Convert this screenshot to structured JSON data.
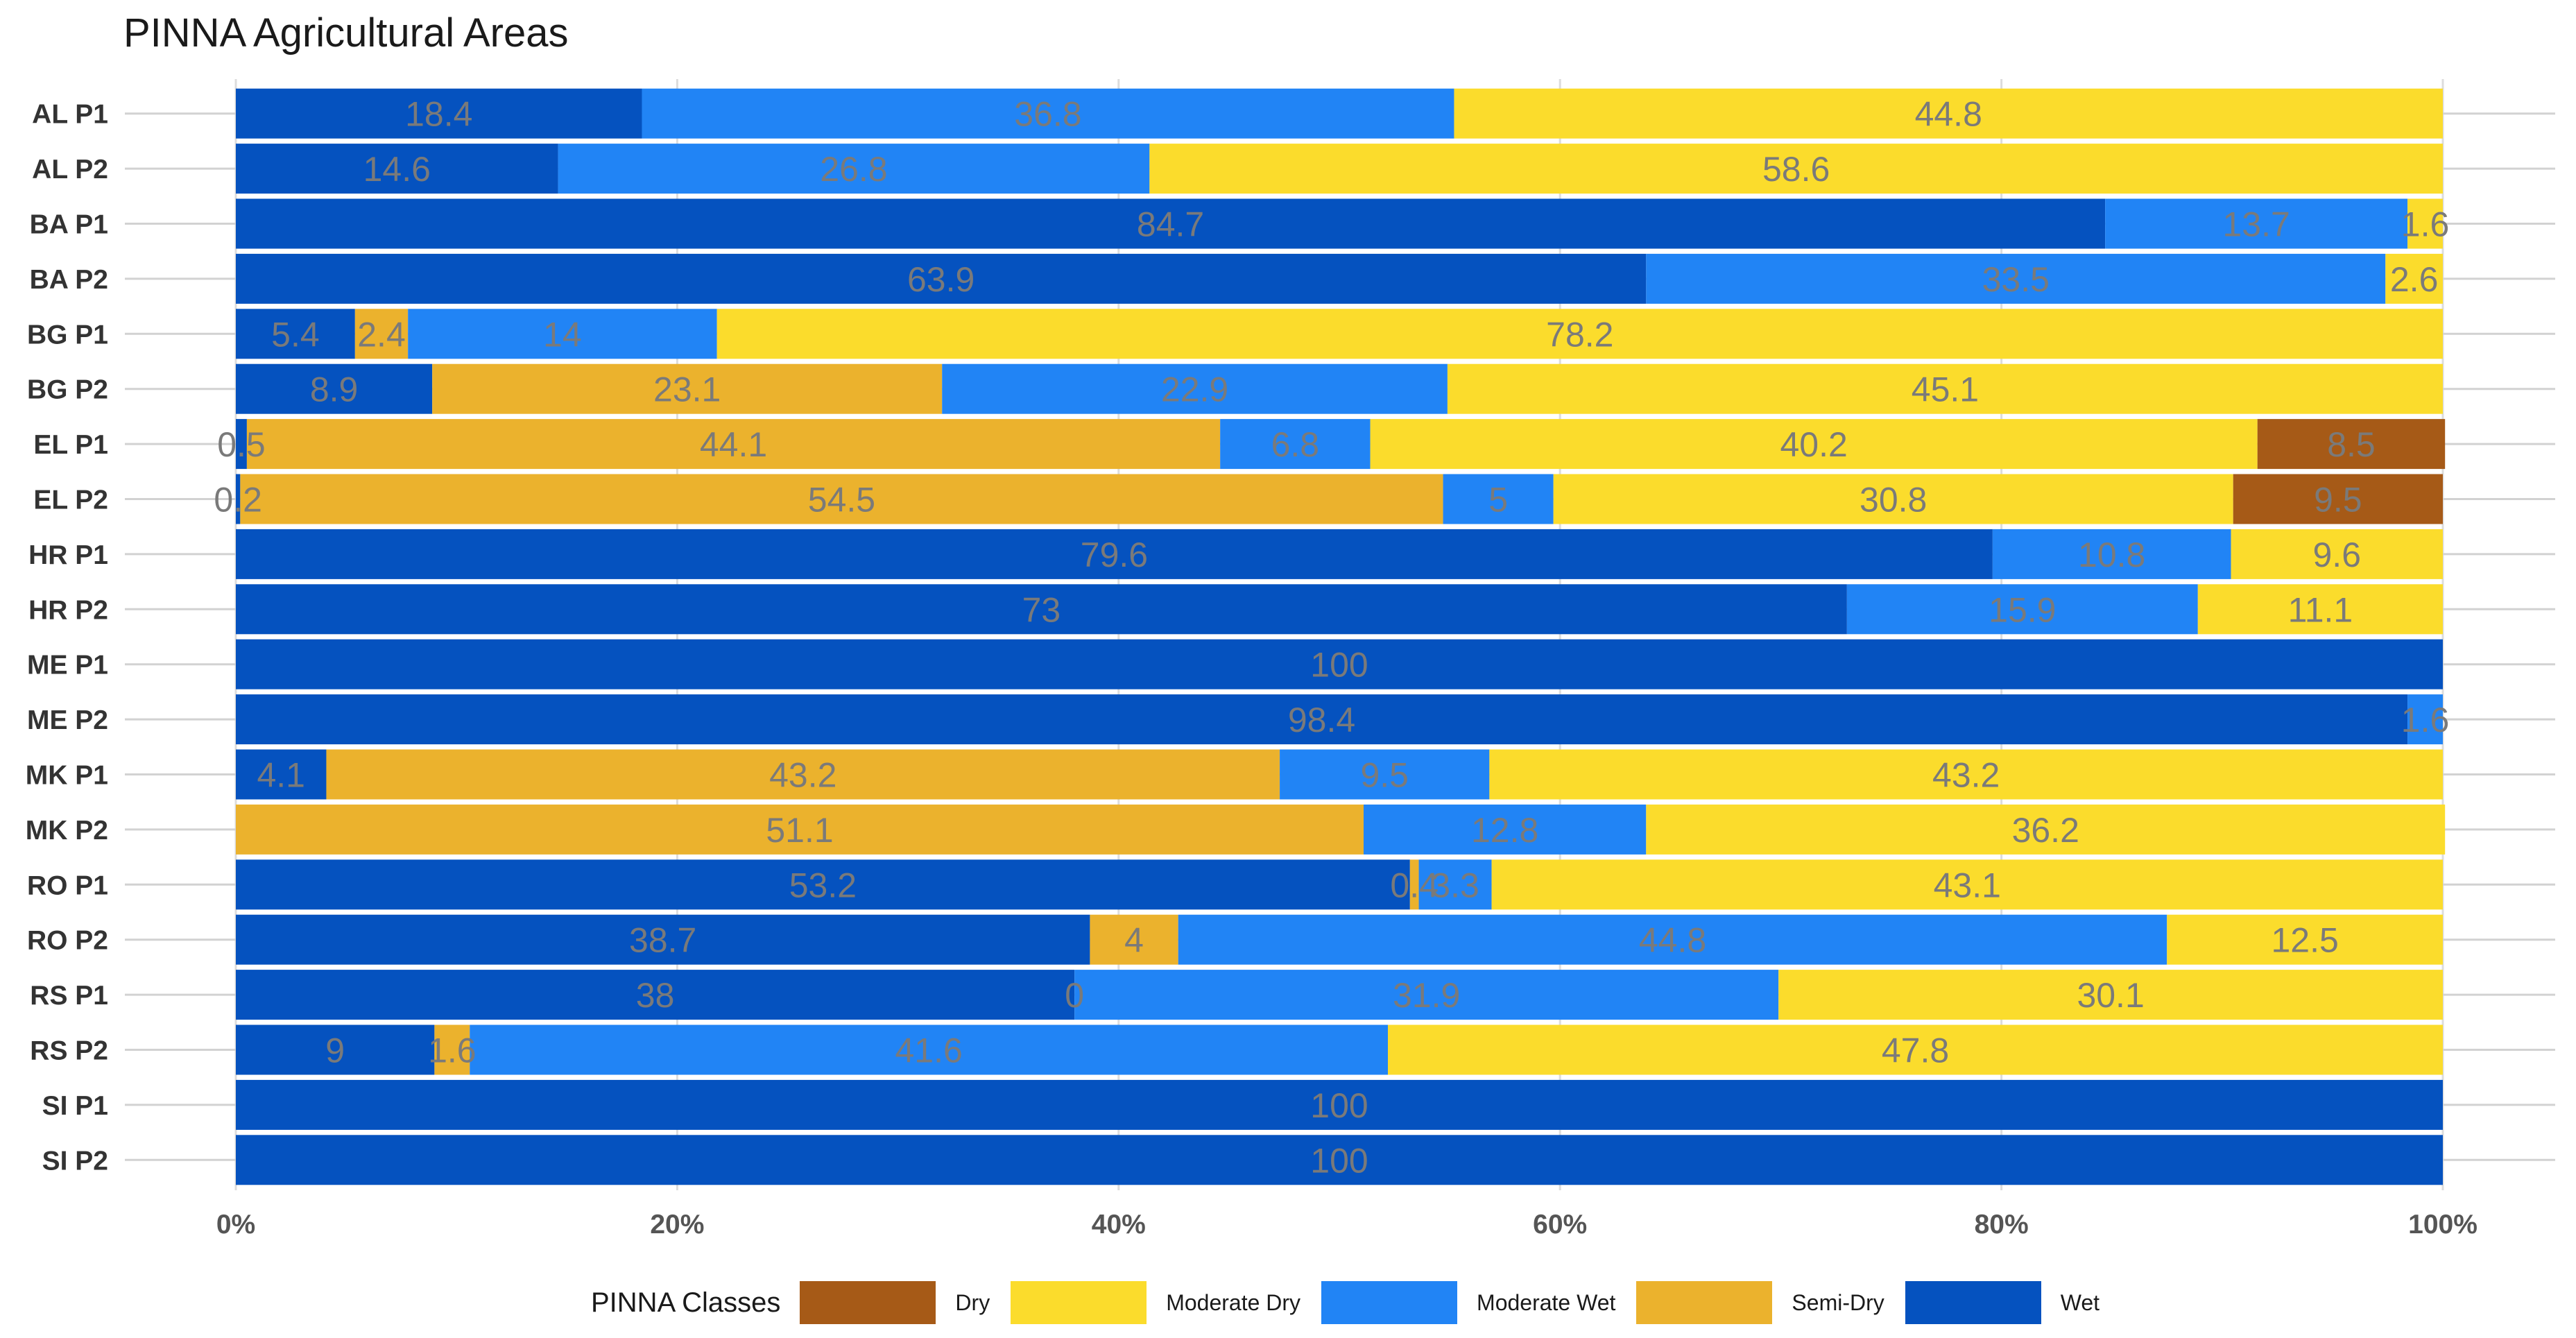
{
  "chart_data": {
    "type": "bar",
    "orientation": "horizontal",
    "stacked": "percent",
    "title": "PINNA Agricultural Areas",
    "xlabel": "",
    "ylabel": "",
    "xlim": [
      0,
      100
    ],
    "x_ticks": [
      "0%",
      "20%",
      "40%",
      "60%",
      "80%",
      "100%"
    ],
    "grid": true,
    "legend_position": "bottom",
    "legend_title": "PINNA Classes",
    "classes": [
      {
        "name": "Dry",
        "color": "#a65a17"
      },
      {
        "name": "Moderate Dry",
        "color": "#fbdc2c"
      },
      {
        "name": "Moderate Wet",
        "color": "#2184f5"
      },
      {
        "name": "Semi-Dry",
        "color": "#ebb22d"
      },
      {
        "name": "Wet",
        "color": "#0552bf"
      }
    ],
    "stack_order": [
      "Wet",
      "Semi-Dry",
      "Moderate Wet",
      "Moderate Dry",
      "Dry"
    ],
    "categories": [
      "AL P1",
      "AL P2",
      "BA P1",
      "BA P2",
      "BG P1",
      "BG P2",
      "EL P1",
      "EL P2",
      "HR P1",
      "HR P2",
      "ME P1",
      "ME P2",
      "MK P1",
      "MK P2",
      "RO P1",
      "RO P2",
      "RS P1",
      "RS P2",
      "SI P1",
      "SI P2"
    ],
    "series": [
      {
        "name": "Wet",
        "values": [
          18.4,
          14.6,
          84.7,
          63.9,
          5.4,
          8.9,
          0.5,
          0.2,
          79.6,
          73,
          100,
          98.4,
          4.1,
          null,
          53.2,
          38.7,
          38,
          9,
          100,
          100
        ]
      },
      {
        "name": "Semi-Dry",
        "values": [
          null,
          null,
          null,
          null,
          2.4,
          23.1,
          44.1,
          54.5,
          null,
          null,
          null,
          null,
          43.2,
          51.1,
          0.4,
          4,
          0,
          1.6,
          null,
          null
        ]
      },
      {
        "name": "Moderate Wet",
        "values": [
          36.8,
          26.8,
          13.7,
          33.5,
          14,
          22.9,
          6.8,
          5,
          10.8,
          15.9,
          null,
          1.6,
          9.5,
          12.8,
          3.3,
          44.8,
          31.9,
          41.6,
          null,
          null
        ]
      },
      {
        "name": "Moderate Dry",
        "values": [
          44.8,
          58.6,
          1.6,
          2.6,
          78.2,
          45.1,
          40.2,
          30.8,
          9.6,
          11.1,
          null,
          null,
          43.2,
          36.2,
          43.1,
          12.5,
          30.1,
          47.8,
          null,
          null
        ]
      },
      {
        "name": "Dry",
        "values": [
          null,
          null,
          null,
          null,
          null,
          null,
          8.5,
          9.5,
          null,
          null,
          null,
          null,
          null,
          null,
          null,
          null,
          null,
          null,
          null,
          null
        ]
      }
    ]
  }
}
